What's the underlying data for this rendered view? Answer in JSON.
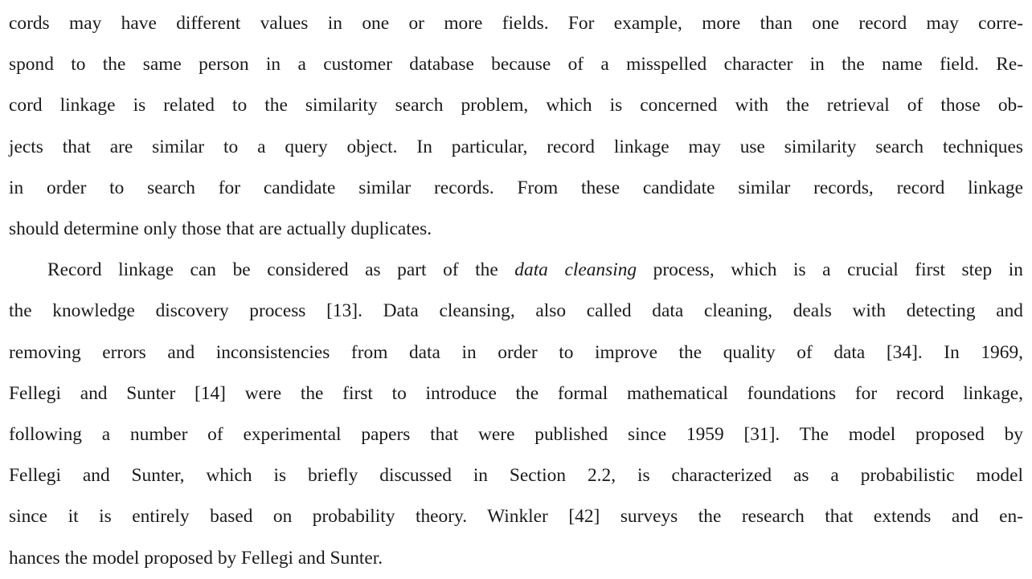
{
  "paragraphs": [
    {
      "lines": [
        "cords may have different values in one or more fields. For example, more than one record may corre-",
        "spond to the same person in a customer database because of a misspelled character in the name field. Re-",
        "cord linkage is related to the similarity search problem, which is concerned with the retrieval of those ob-",
        "jects that are similar to a query object. In particular, record linkage may use similarity search techniques",
        "in order to search for candidate similar records. From these candidate similar records, record linkage",
        "should determine only those that are actually duplicates."
      ]
    },
    {
      "line1_before": "Record linkage can be considered as part of the ",
      "line1_italic": "data cleansing",
      "line1_after": " process, which is a crucial first step in",
      "lines": [
        "the knowledge discovery process [13]. Data cleansing, also called data cleaning, deals with detecting and",
        "removing errors and inconsistencies from data in order to improve the quality of data [34]. In 1969,",
        "Fellegi and Sunter [14] were the first to introduce the formal mathematical foundations for record linkage,",
        "following a number of experimental papers that were published since 1959 [31]. The model proposed by",
        "Fellegi and Sunter, which is briefly discussed in Section 2.2, is characterized as a probabilistic model",
        "since it is entirely based on probability theory. Winkler [42] surveys the research that extends and en-",
        "hances the model proposed by Fellegi and Sunter."
      ]
    }
  ]
}
